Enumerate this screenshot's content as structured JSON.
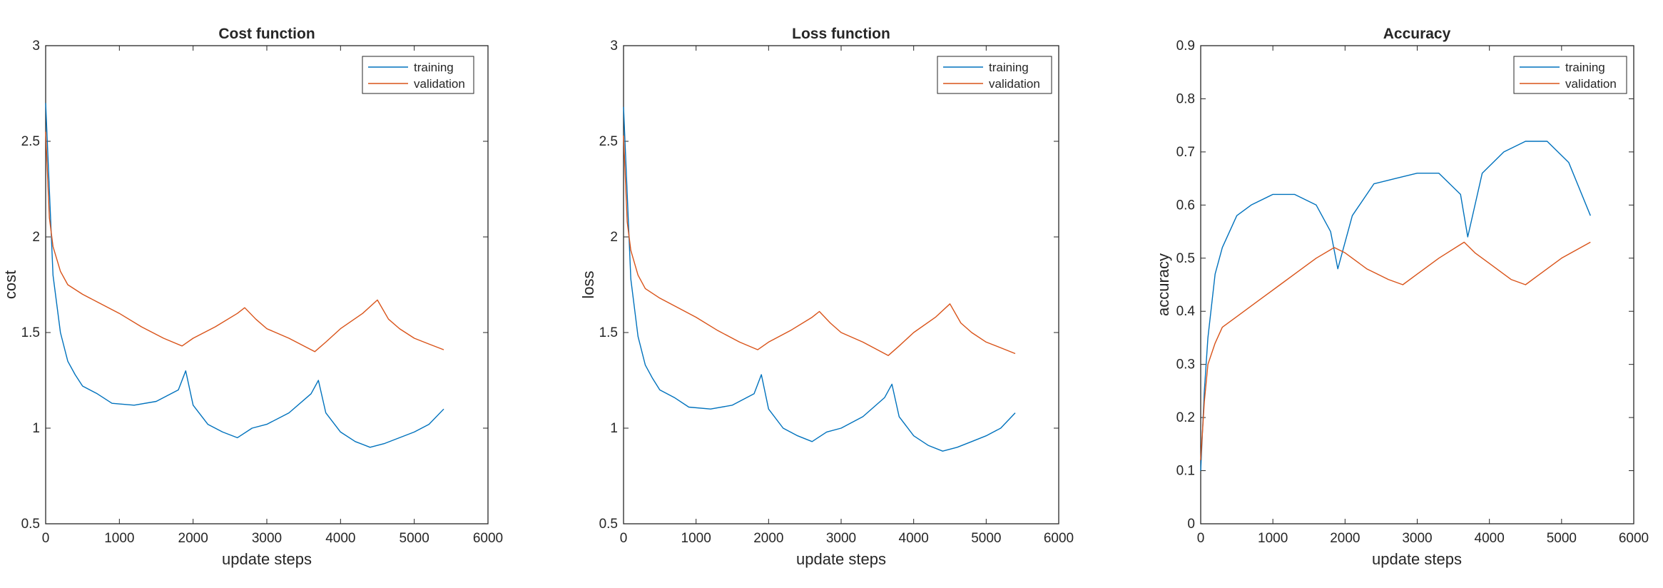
{
  "colors": {
    "training": "#0072BD",
    "validation": "#D95319",
    "axes": "#262626"
  },
  "chart_data": [
    {
      "type": "line",
      "title": "Cost function",
      "xlabel": "update steps",
      "ylabel": "cost",
      "xlim": [
        0,
        6000
      ],
      "ylim": [
        0.5,
        3
      ],
      "xticks": [
        0,
        1000,
        2000,
        3000,
        4000,
        5000,
        6000
      ],
      "yticks": [
        0.5,
        1,
        1.5,
        2,
        2.5,
        3
      ],
      "grid": false,
      "legend_position": "top-right",
      "series": [
        {
          "name": "training",
          "x": [
            0,
            100,
            200,
            300,
            400,
            500,
            700,
            900,
            1200,
            1500,
            1800,
            1900,
            2000,
            2200,
            2400,
            2600,
            2800,
            3000,
            3300,
            3600,
            3700,
            3800,
            4000,
            4200,
            4400,
            4600,
            4800,
            5000,
            5200,
            5400
          ],
          "y": [
            2.7,
            1.8,
            1.5,
            1.35,
            1.28,
            1.22,
            1.18,
            1.13,
            1.12,
            1.14,
            1.2,
            1.3,
            1.12,
            1.02,
            0.98,
            0.95,
            1.0,
            1.02,
            1.08,
            1.18,
            1.25,
            1.08,
            0.98,
            0.93,
            0.9,
            0.92,
            0.95,
            0.98,
            1.02,
            1.1
          ]
        },
        {
          "name": "validation",
          "x": [
            0,
            50,
            100,
            200,
            300,
            500,
            700,
            1000,
            1300,
            1600,
            1850,
            2000,
            2300,
            2600,
            2700,
            2850,
            3000,
            3300,
            3650,
            3800,
            4000,
            4300,
            4500,
            4650,
            4800,
            5000,
            5200,
            5400
          ],
          "y": [
            2.55,
            2.1,
            1.95,
            1.82,
            1.75,
            1.7,
            1.66,
            1.6,
            1.53,
            1.47,
            1.43,
            1.47,
            1.53,
            1.6,
            1.63,
            1.57,
            1.52,
            1.47,
            1.4,
            1.45,
            1.52,
            1.6,
            1.67,
            1.57,
            1.52,
            1.47,
            1.44,
            1.41
          ]
        }
      ]
    },
    {
      "type": "line",
      "title": "Loss function",
      "xlabel": "update steps",
      "ylabel": "loss",
      "xlim": [
        0,
        6000
      ],
      "ylim": [
        0.5,
        3
      ],
      "xticks": [
        0,
        1000,
        2000,
        3000,
        4000,
        5000,
        6000
      ],
      "yticks": [
        0.5,
        1,
        1.5,
        2,
        2.5,
        3
      ],
      "grid": false,
      "legend_position": "top-right",
      "series": [
        {
          "name": "training",
          "x": [
            0,
            100,
            200,
            300,
            400,
            500,
            700,
            900,
            1200,
            1500,
            1800,
            1900,
            2000,
            2200,
            2400,
            2600,
            2800,
            3000,
            3300,
            3600,
            3700,
            3800,
            4000,
            4200,
            4400,
            4600,
            4800,
            5000,
            5200,
            5400
          ],
          "y": [
            2.68,
            1.78,
            1.48,
            1.33,
            1.26,
            1.2,
            1.16,
            1.11,
            1.1,
            1.12,
            1.18,
            1.28,
            1.1,
            1.0,
            0.96,
            0.93,
            0.98,
            1.0,
            1.06,
            1.16,
            1.23,
            1.06,
            0.96,
            0.91,
            0.88,
            0.9,
            0.93,
            0.96,
            1.0,
            1.08
          ]
        },
        {
          "name": "validation",
          "x": [
            0,
            50,
            100,
            200,
            300,
            500,
            700,
            1000,
            1300,
            1600,
            1850,
            2000,
            2300,
            2600,
            2700,
            2850,
            3000,
            3300,
            3650,
            3800,
            4000,
            4300,
            4500,
            4650,
            4800,
            5000,
            5200,
            5400
          ],
          "y": [
            2.53,
            2.08,
            1.93,
            1.8,
            1.73,
            1.68,
            1.64,
            1.58,
            1.51,
            1.45,
            1.41,
            1.45,
            1.51,
            1.58,
            1.61,
            1.55,
            1.5,
            1.45,
            1.38,
            1.43,
            1.5,
            1.58,
            1.65,
            1.55,
            1.5,
            1.45,
            1.42,
            1.39
          ]
        }
      ]
    },
    {
      "type": "line",
      "title": "Accuracy",
      "xlabel": "update steps",
      "ylabel": "accuracy",
      "xlim": [
        0,
        6000
      ],
      "ylim": [
        0,
        0.9
      ],
      "xticks": [
        0,
        1000,
        2000,
        3000,
        4000,
        5000,
        6000
      ],
      "yticks": [
        0,
        0.1,
        0.2,
        0.3,
        0.4,
        0.5,
        0.6,
        0.7,
        0.8,
        0.9
      ],
      "grid": false,
      "legend_position": "top-right",
      "series": [
        {
          "name": "training",
          "x": [
            0,
            50,
            100,
            200,
            300,
            500,
            700,
            1000,
            1300,
            1600,
            1800,
            1900,
            2100,
            2400,
            2700,
            3000,
            3300,
            3600,
            3700,
            3900,
            4200,
            4500,
            4800,
            5100,
            5400
          ],
          "y": [
            0.1,
            0.25,
            0.35,
            0.47,
            0.52,
            0.58,
            0.6,
            0.62,
            0.62,
            0.6,
            0.55,
            0.48,
            0.58,
            0.64,
            0.65,
            0.66,
            0.66,
            0.62,
            0.54,
            0.66,
            0.7,
            0.72,
            0.72,
            0.68,
            0.58
          ]
        },
        {
          "name": "validation",
          "x": [
            0,
            50,
            100,
            200,
            300,
            500,
            800,
            1100,
            1400,
            1600,
            1850,
            2000,
            2300,
            2600,
            2800,
            3000,
            3300,
            3650,
            3800,
            4000,
            4300,
            4500,
            4700,
            5000,
            5400
          ],
          "y": [
            0.12,
            0.23,
            0.3,
            0.34,
            0.37,
            0.39,
            0.42,
            0.45,
            0.48,
            0.5,
            0.52,
            0.51,
            0.48,
            0.46,
            0.45,
            0.47,
            0.5,
            0.53,
            0.51,
            0.49,
            0.46,
            0.45,
            0.47,
            0.5,
            0.53
          ]
        }
      ]
    }
  ]
}
